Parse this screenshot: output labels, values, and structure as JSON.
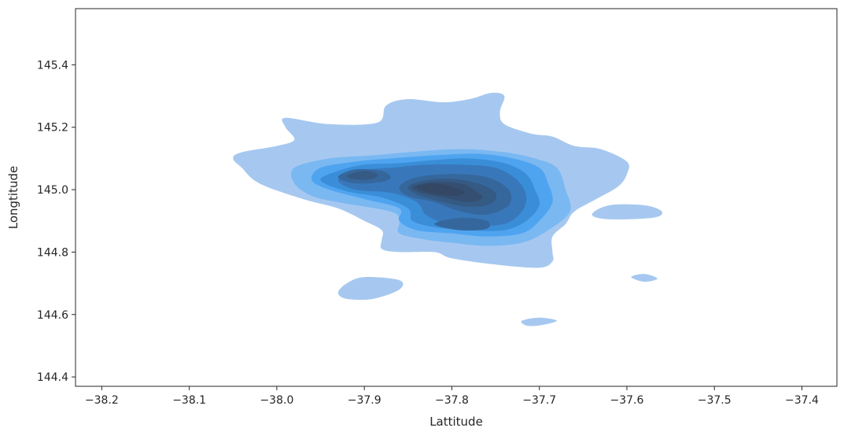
{
  "chart_data": {
    "type": "kde_contour",
    "title": "",
    "xlabel": "Lattitude",
    "ylabel": "Longtitude",
    "xlim": [
      -38.23,
      -37.36
    ],
    "ylim": [
      144.37,
      145.58
    ],
    "xticks": [
      -38.2,
      -38.1,
      -38.0,
      -37.9,
      -37.8,
      -37.7,
      -37.6,
      -37.5,
      -37.4
    ],
    "xtick_labels": [
      "−38.2",
      "−38.1",
      "−38.0",
      "−37.9",
      "−37.8",
      "−37.7",
      "−37.6",
      "−37.5",
      "−37.4"
    ],
    "yticks": [
      144.4,
      144.6,
      144.8,
      145.0,
      145.2,
      145.4
    ],
    "ytick_labels": [
      "144.4",
      "144.6",
      "144.8",
      "145.0",
      "145.2",
      "145.4"
    ],
    "grid": false,
    "level_colors": [
      "#a6c8f0",
      "#7ab8f2",
      "#4fa4f0",
      "#3a8ed8",
      "#3878ba",
      "#36679c",
      "#355a84",
      "#344f72",
      "#344866"
    ],
    "levels": [
      {
        "level": 1,
        "regions": [
          {
            "name": "main",
            "points": [
              [
                -38.04,
                145.12
              ],
              [
                -38.0,
                145.14
              ],
              [
                -37.98,
                145.16
              ],
              [
                -37.99,
                145.2
              ],
              [
                -37.99,
                145.23
              ],
              [
                -37.94,
                145.21
              ],
              [
                -37.885,
                145.215
              ],
              [
                -37.875,
                145.27
              ],
              [
                -37.85,
                145.29
              ],
              [
                -37.81,
                145.28
              ],
              [
                -37.78,
                145.29
              ],
              [
                -37.755,
                145.31
              ],
              [
                -37.74,
                145.3
              ],
              [
                -37.745,
                145.25
              ],
              [
                -37.74,
                145.21
              ],
              [
                -37.71,
                145.18
              ],
              [
                -37.685,
                145.17
              ],
              [
                -37.66,
                145.14
              ],
              [
                -37.63,
                145.13
              ],
              [
                -37.6,
                145.09
              ],
              [
                -37.6,
                145.05
              ],
              [
                -37.61,
                145.01
              ],
              [
                -37.635,
                144.97
              ],
              [
                -37.66,
                144.93
              ],
              [
                -37.67,
                144.89
              ],
              [
                -37.685,
                144.85
              ],
              [
                -37.685,
                144.8
              ],
              [
                -37.685,
                144.77
              ],
              [
                -37.7,
                144.75
              ],
              [
                -37.75,
                144.76
              ],
              [
                -37.8,
                144.78
              ],
              [
                -37.82,
                144.8
              ],
              [
                -37.86,
                144.8
              ],
              [
                -37.88,
                144.81
              ],
              [
                -37.88,
                144.84
              ],
              [
                -37.88,
                144.87
              ],
              [
                -37.9,
                144.9
              ],
              [
                -37.93,
                144.94
              ],
              [
                -37.97,
                144.97
              ],
              [
                -38.02,
                145.02
              ],
              [
                -38.04,
                145.07
              ],
              [
                -38.05,
                145.1
              ]
            ]
          },
          {
            "name": "east-lobe",
            "points": [
              [
                -37.64,
                144.92
              ],
              [
                -37.62,
                144.95
              ],
              [
                -37.58,
                144.95
              ],
              [
                -37.56,
                144.93
              ],
              [
                -37.57,
                144.91
              ],
              [
                -37.62,
                144.905
              ]
            ]
          },
          {
            "name": "southwest-blob",
            "points": [
              [
                -37.93,
                144.67
              ],
              [
                -37.92,
                144.7
              ],
              [
                -37.9,
                144.72
              ],
              [
                -37.86,
                144.71
              ],
              [
                -37.86,
                144.68
              ],
              [
                -37.89,
                144.65
              ],
              [
                -37.92,
                144.65
              ]
            ]
          },
          {
            "name": "south-blob",
            "points": [
              [
                -37.72,
                144.58
              ],
              [
                -37.7,
                144.59
              ],
              [
                -37.68,
                144.58
              ],
              [
                -37.7,
                144.565
              ],
              [
                -37.715,
                144.565
              ]
            ]
          },
          {
            "name": "southeast-blob",
            "points": [
              [
                -37.595,
                144.72
              ],
              [
                -37.58,
                144.73
              ],
              [
                -37.565,
                144.715
              ],
              [
                -37.58,
                144.705
              ]
            ]
          }
        ]
      },
      {
        "level": 2,
        "regions": [
          {
            "name": "main",
            "points": [
              [
                -37.98,
                145.02
              ],
              [
                -37.98,
                145.07
              ],
              [
                -37.94,
                145.1
              ],
              [
                -37.89,
                145.11
              ],
              [
                -37.85,
                145.12
              ],
              [
                -37.79,
                145.13
              ],
              [
                -37.74,
                145.12
              ],
              [
                -37.705,
                145.1
              ],
              [
                -37.68,
                145.07
              ],
              [
                -37.67,
                145.0
              ],
              [
                -37.665,
                144.93
              ],
              [
                -37.69,
                144.87
              ],
              [
                -37.72,
                144.83
              ],
              [
                -37.76,
                144.82
              ],
              [
                -37.8,
                144.83
              ],
              [
                -37.83,
                144.84
              ],
              [
                -37.86,
                144.86
              ],
              [
                -37.86,
                144.9
              ],
              [
                -37.87,
                144.93
              ],
              [
                -37.93,
                144.96
              ],
              [
                -37.96,
                144.98
              ]
            ]
          }
        ]
      },
      {
        "level": 3,
        "regions": [
          {
            "name": "main",
            "points": [
              [
                -37.96,
                145.03
              ],
              [
                -37.95,
                145.07
              ],
              [
                -37.91,
                145.09
              ],
              [
                -37.87,
                145.1
              ],
              [
                -37.82,
                145.11
              ],
              [
                -37.77,
                145.115
              ],
              [
                -37.73,
                145.1
              ],
              [
                -37.7,
                145.07
              ],
              [
                -37.69,
                145.02
              ],
              [
                -37.685,
                144.96
              ],
              [
                -37.7,
                144.9
              ],
              [
                -37.72,
                144.86
              ],
              [
                -37.76,
                144.85
              ],
              [
                -37.8,
                144.86
              ],
              [
                -37.84,
                144.87
              ],
              [
                -37.86,
                144.9
              ],
              [
                -37.86,
                144.94
              ],
              [
                -37.9,
                144.97
              ],
              [
                -37.94,
                145.0
              ]
            ]
          }
        ]
      },
      {
        "level": 4,
        "regions": [
          {
            "name": "main",
            "points": [
              [
                -37.95,
                145.03
              ],
              [
                -37.93,
                145.06
              ],
              [
                -37.9,
                145.08
              ],
              [
                -37.86,
                145.085
              ],
              [
                -37.82,
                145.095
              ],
              [
                -37.78,
                145.1
              ],
              [
                -37.74,
                145.085
              ],
              [
                -37.715,
                145.05
              ],
              [
                -37.705,
                145.0
              ],
              [
                -37.7,
                144.95
              ],
              [
                -37.715,
                144.9
              ],
              [
                -37.74,
                144.87
              ],
              [
                -37.78,
                144.87
              ],
              [
                -37.82,
                144.88
              ],
              [
                -37.845,
                144.9
              ],
              [
                -37.85,
                144.94
              ],
              [
                -37.88,
                144.975
              ],
              [
                -37.92,
                144.995
              ]
            ]
          }
        ]
      },
      {
        "level": 5,
        "regions": [
          {
            "name": "main",
            "points": [
              [
                -37.93,
                145.03
              ],
              [
                -37.91,
                145.06
              ],
              [
                -37.87,
                145.07
              ],
              [
                -37.83,
                145.08
              ],
              [
                -37.79,
                145.08
              ],
              [
                -37.75,
                145.07
              ],
              [
                -37.725,
                145.03
              ],
              [
                -37.715,
                144.98
              ],
              [
                -37.72,
                144.93
              ],
              [
                -37.74,
                144.89
              ],
              [
                -37.78,
                144.885
              ],
              [
                -37.81,
                144.895
              ],
              [
                -37.83,
                144.92
              ],
              [
                -37.84,
                144.96
              ],
              [
                -37.87,
                144.99
              ],
              [
                -37.91,
                145.0
              ]
            ]
          }
        ]
      },
      {
        "level": 6,
        "regions": [
          {
            "name": "west-core",
            "points": [
              [
                -37.93,
                145.04
              ],
              [
                -37.91,
                145.065
              ],
              [
                -37.88,
                145.06
              ],
              [
                -37.87,
                145.04
              ],
              [
                -37.88,
                145.025
              ],
              [
                -37.91,
                145.02
              ]
            ]
          },
          {
            "name": "central-core",
            "points": [
              [
                -37.86,
                145.01
              ],
              [
                -37.84,
                145.04
              ],
              [
                -37.8,
                145.05
              ],
              [
                -37.76,
                145.04
              ],
              [
                -37.735,
                145.0
              ],
              [
                -37.735,
                144.95
              ],
              [
                -37.76,
                144.92
              ],
              [
                -37.79,
                144.93
              ],
              [
                -37.82,
                144.96
              ],
              [
                -37.85,
                144.98
              ]
            ]
          },
          {
            "name": "south-core",
            "points": [
              [
                -37.82,
                144.89
              ],
              [
                -37.79,
                144.91
              ],
              [
                -37.76,
                144.9
              ],
              [
                -37.76,
                144.875
              ],
              [
                -37.79,
                144.87
              ]
            ]
          }
        ]
      },
      {
        "level": 7,
        "regions": [
          {
            "name": "west-core",
            "points": [
              [
                -37.92,
                145.045
              ],
              [
                -37.9,
                145.06
              ],
              [
                -37.885,
                145.05
              ],
              [
                -37.89,
                145.035
              ],
              [
                -37.91,
                145.033
              ]
            ]
          },
          {
            "name": "central-core",
            "points": [
              [
                -37.85,
                145.01
              ],
              [
                -37.83,
                145.03
              ],
              [
                -37.8,
                145.035
              ],
              [
                -37.77,
                145.02
              ],
              [
                -37.75,
                144.99
              ],
              [
                -37.755,
                144.955
              ],
              [
                -37.78,
                144.945
              ],
              [
                -37.81,
                144.96
              ],
              [
                -37.84,
                144.985
              ]
            ]
          }
        ]
      },
      {
        "level": 8,
        "regions": [
          {
            "name": "central-core",
            "points": [
              [
                -37.845,
                145.01
              ],
              [
                -37.82,
                145.025
              ],
              [
                -37.79,
                145.02
              ],
              [
                -37.775,
                145.0
              ],
              [
                -37.765,
                144.975
              ],
              [
                -37.78,
                144.96
              ],
              [
                -37.81,
                144.975
              ],
              [
                -37.835,
                144.99
              ]
            ]
          }
        ]
      },
      {
        "level": 9,
        "regions": [
          {
            "name": "central-core",
            "points": [
              [
                -37.84,
                145.01
              ],
              [
                -37.82,
                145.02
              ],
              [
                -37.8,
                145.01
              ],
              [
                -37.785,
                144.99
              ],
              [
                -37.8,
                144.98
              ],
              [
                -37.825,
                144.99
              ]
            ]
          }
        ]
      }
    ]
  }
}
